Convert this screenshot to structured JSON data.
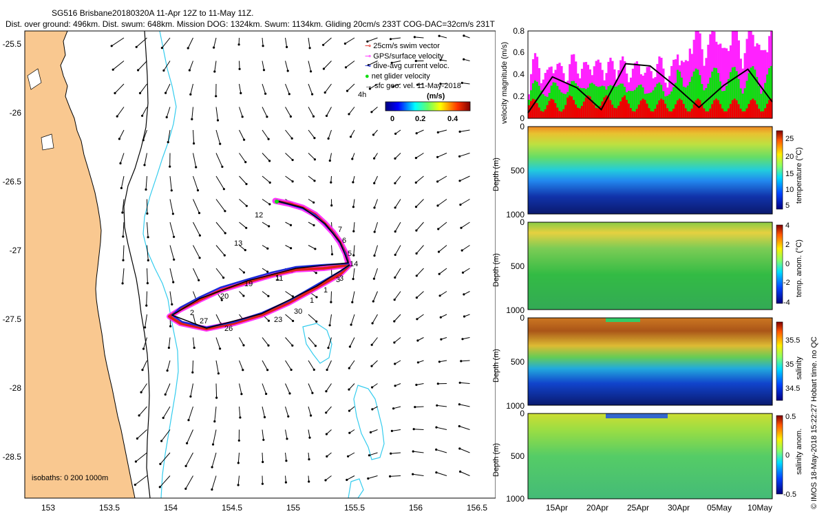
{
  "title": {
    "line1": "SG516 Brisbane20180320A 11-Apr 12Z to 11-May 11Z.",
    "line2": "Dist. over ground: 496km. Dist. swum: 648km. Mission DOG: 1324km. Swum: 1134km. Gliding 20cm/s 233T COG-DAC=32cm/s 231T"
  },
  "map": {
    "legend": [
      "25cm/s swim vector",
      "GPS/surface velocity",
      "dive-avg current veloc.",
      "net glider velocity",
      "sfc geo. vel. 11-May-2018"
    ],
    "legend_extra": "4h",
    "colorbar_units": "(m/s)",
    "colorbar_ticks": [
      "0",
      "0.2",
      "0.4"
    ],
    "isobaths_label": "isobaths: 0   200  1000m",
    "day_labels": [
      "12",
      "13",
      "1",
      "1",
      "1",
      "20",
      "2",
      "3",
      "5",
      "6",
      "7",
      "14",
      "19",
      "11",
      "23",
      "26",
      "27",
      "30",
      "3"
    ]
  },
  "credit": "© IMOS 18-May-2018 15:22:27 Hobart time. no QC",
  "colors": {
    "land": "#f9c890",
    "coast": "#000000",
    "isobath": "#33ccee",
    "track_red": "#e0201a",
    "track_blue": "#1a2ad8",
    "track_magenta": "#ff22ff",
    "track_black": "#000000",
    "speed_green": "#11dd11",
    "speed_red": "#ee0000"
  },
  "chart_data": [
    {
      "type": "scatter",
      "title": "",
      "xlabel": "",
      "ylabel": "",
      "xlim": [
        152.8,
        156.65
      ],
      "ylim": [
        -28.78,
        -25.4
      ],
      "xticks": [
        "153",
        "153.5",
        "154",
        "154.5",
        "155",
        "155.5",
        "156",
        "156.5"
      ],
      "yticks": [
        "-25.5",
        "-26",
        "-26.5",
        "-27",
        "-27.5",
        "-28",
        "-28.5"
      ],
      "series": [
        {
          "name": "dive-avg current veloc.",
          "x": [
            154.85,
            155.0,
            155.2,
            155.35,
            155.45,
            155.42,
            155.1,
            154.7,
            154.4,
            154.15,
            154.03,
            154.2,
            154.5,
            154.9,
            155.2,
            155.42
          ],
          "y": [
            -26.65,
            -26.7,
            -26.8,
            -26.92,
            -27.05,
            -27.07,
            -27.1,
            -27.2,
            -27.3,
            -27.4,
            -27.47,
            -27.55,
            -27.5,
            -27.45,
            -27.3,
            -27.1
          ]
        }
      ]
    },
    {
      "type": "line",
      "ylabel": "velocity magnitude (m/s)",
      "ylim": [
        0,
        0.8
      ],
      "yticks": [
        "0",
        "0.2",
        "0.4",
        "0.6",
        "0.8"
      ],
      "series": [
        {
          "name": "net glider velocity",
          "x_days": [
            0,
            3,
            6,
            9,
            12,
            15,
            18,
            21,
            24,
            27,
            30
          ],
          "y": [
            0.05,
            0.38,
            0.28,
            0.08,
            0.5,
            0.48,
            0.3,
            0.1,
            0.3,
            0.45,
            0.15
          ]
        }
      ]
    },
    {
      "type": "heatmap",
      "ylabel": "Depth (m)",
      "colorbar_label": "temperature (°C)",
      "yticks": [
        "0",
        "500",
        "1000"
      ],
      "colorbar_ticks": [
        "25",
        "20",
        "15",
        "10",
        "5"
      ]
    },
    {
      "type": "heatmap",
      "ylabel": "Depth (m)",
      "colorbar_label": "temp. anom. (°C)",
      "yticks": [
        "0",
        "500",
        "1000"
      ],
      "colorbar_ticks": [
        "4",
        "2",
        "0",
        "-2",
        "-4"
      ]
    },
    {
      "type": "heatmap",
      "ylabel": "Depth (m)",
      "colorbar_label": "salinity",
      "yticks": [
        "0",
        "500",
        "1000"
      ],
      "colorbar_ticks": [
        "35.5",
        "35",
        "34.5"
      ]
    },
    {
      "type": "heatmap",
      "ylabel": "Depth (m)",
      "colorbar_label": "salinity anom.",
      "yticks": [
        "0",
        "500",
        "1000"
      ],
      "colorbar_ticks": [
        "0.5",
        "0",
        "-0.5"
      ],
      "xticks": [
        "15Apr",
        "20Apr",
        "25Apr",
        "30Apr",
        "05May",
        "10May"
      ]
    }
  ]
}
